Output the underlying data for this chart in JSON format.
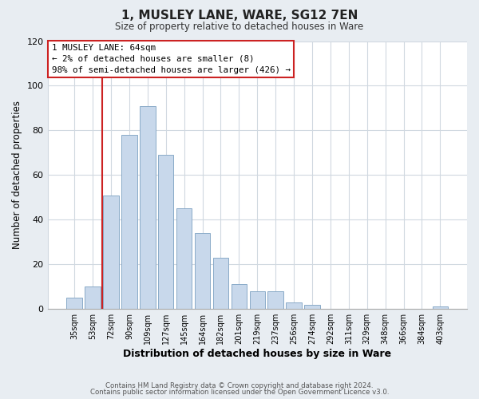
{
  "title": "1, MUSLEY LANE, WARE, SG12 7EN",
  "subtitle": "Size of property relative to detached houses in Ware",
  "xlabel": "Distribution of detached houses by size in Ware",
  "ylabel": "Number of detached properties",
  "bar_color": "#c8d8eb",
  "bar_edge_color": "#8aaac8",
  "categories": [
    "35sqm",
    "53sqm",
    "72sqm",
    "90sqm",
    "109sqm",
    "127sqm",
    "145sqm",
    "164sqm",
    "182sqm",
    "201sqm",
    "219sqm",
    "237sqm",
    "256sqm",
    "274sqm",
    "292sqm",
    "311sqm",
    "329sqm",
    "348sqm",
    "366sqm",
    "384sqm",
    "403sqm"
  ],
  "values": [
    5,
    10,
    51,
    78,
    91,
    69,
    45,
    34,
    23,
    11,
    8,
    8,
    3,
    2,
    0,
    0,
    0,
    0,
    0,
    0,
    1
  ],
  "ylim": [
    0,
    120
  ],
  "yticks": [
    0,
    20,
    40,
    60,
    80,
    100,
    120
  ],
  "property_line_index": 1,
  "annotation_title": "1 MUSLEY LANE: 64sqm",
  "annotation_line1": "← 2% of detached houses are smaller (8)",
  "annotation_line2": "98% of semi-detached houses are larger (426) →",
  "footer1": "Contains HM Land Registry data © Crown copyright and database right 2024.",
  "footer2": "Contains public sector information licensed under the Open Government Licence v3.0.",
  "fig_background_color": "#e8edf2",
  "plot_background_color": "#ffffff",
  "grid_color": "#d0d8e0",
  "annotation_box_color": "#ffffff",
  "annotation_box_edge": "#cc2222",
  "property_line_color": "#cc2222"
}
